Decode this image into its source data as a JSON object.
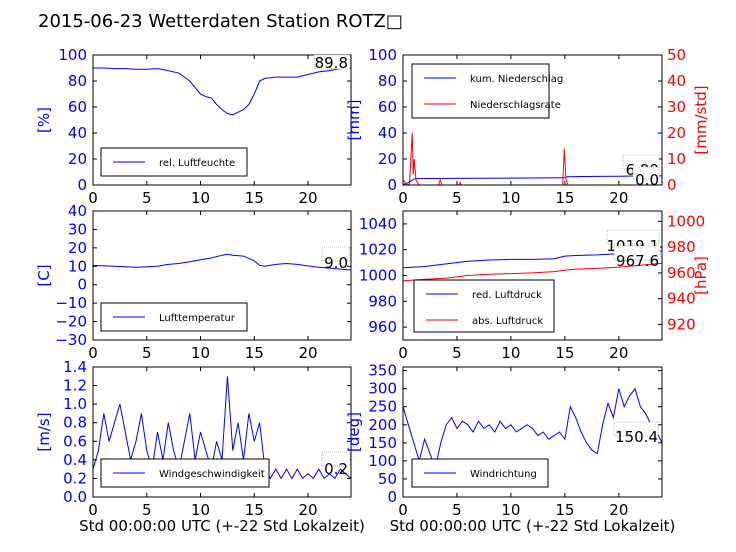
{
  "figure": {
    "title": "2015-06-23 Wetterdaten Station ROTZ□"
  },
  "colors": {
    "blue": "#0000ff",
    "red": "#ff0000",
    "light_blue": "#8080ff",
    "black": "#000000"
  },
  "chart_data": [
    {
      "id": "humidity",
      "type": "line",
      "xlim": [
        0,
        24
      ],
      "ylim": [
        0,
        100
      ],
      "xticks": [
        "0",
        "5",
        "10",
        "15",
        "20"
      ],
      "yticks": [
        "0",
        "20",
        "40",
        "60",
        "80",
        "100"
      ],
      "ylabel": "[%]",
      "xlabel": "",
      "legend": {
        "entries": [
          "rel. Luftfeuchte"
        ],
        "placement": "lower-left"
      },
      "annotations": [
        "89.8"
      ],
      "grid": false,
      "series": [
        {
          "name": "rel. Luftfeuchte",
          "color": "#0000ff",
          "x": [
            0,
            1,
            2,
            3,
            4,
            5,
            6,
            7,
            8,
            9,
            10,
            10.5,
            11,
            11.5,
            12,
            12.5,
            13,
            13.5,
            14,
            14.5,
            15,
            15.5,
            16,
            17,
            18,
            19,
            20,
            21,
            22,
            23,
            24
          ],
          "values": [
            90,
            90,
            89.5,
            89.5,
            89,
            89,
            89.5,
            88,
            86,
            80,
            70,
            68,
            67,
            62,
            58,
            55,
            54,
            56,
            58,
            62,
            70,
            80,
            82,
            83,
            83,
            83,
            85,
            87,
            88,
            89.5,
            90
          ]
        }
      ]
    },
    {
      "id": "precipitation",
      "type": "line",
      "xlim": [
        0,
        24
      ],
      "ylim": [
        0,
        100
      ],
      "y2lim": [
        0,
        50
      ],
      "xticks": [
        "0",
        "5",
        "10",
        "15",
        "20"
      ],
      "yticks": [
        "0",
        "20",
        "40",
        "60",
        "80",
        "100"
      ],
      "y2ticks": [
        "0",
        "10",
        "20",
        "30",
        "40",
        "50"
      ],
      "ylabel": "[mm]",
      "y2label": "[mm/std]",
      "xlabel": "",
      "legend": {
        "entries": [
          "kum. Niederschlag",
          "Niederschlagsrate"
        ],
        "placement": "top-left"
      },
      "annotations": [
        "6.99",
        "0.0"
      ],
      "grid": false,
      "series": [
        {
          "name": "kum. Niederschlag",
          "color": "#0000ff",
          "axis": "left",
          "x": [
            0,
            0.3,
            0.5,
            0.8,
            1.0,
            1.2,
            3,
            5,
            10,
            14.9,
            15.1,
            18,
            20,
            22,
            24
          ],
          "values": [
            0.5,
            1,
            2,
            3.5,
            4.5,
            5,
            5,
            5.1,
            5.3,
            5.5,
            6.4,
            6.6,
            6.8,
            6.95,
            7
          ]
        },
        {
          "name": "Niederschlagsrate",
          "color": "#ff0000",
          "axis": "right",
          "x": [
            0,
            0.2,
            0.4,
            0.6,
            0.75,
            0.85,
            0.95,
            1.05,
            1.2,
            1.5,
            3.3,
            3.45,
            3.6,
            5.2,
            5.3,
            5.4,
            14.8,
            14.95,
            15.1,
            15.3,
            24
          ],
          "values": [
            2,
            1,
            0,
            0.5,
            12,
            20,
            4,
            10,
            2,
            0,
            0,
            2,
            0,
            0,
            1,
            0,
            0,
            14,
            2,
            0,
            0
          ]
        }
      ]
    },
    {
      "id": "temperature",
      "type": "line",
      "xlim": [
        0,
        24
      ],
      "ylim": [
        -30,
        40
      ],
      "xticks": [
        "0",
        "5",
        "10",
        "15",
        "20"
      ],
      "yticks": [
        "−30",
        "−20",
        "−10",
        "0",
        "10",
        "20",
        "30",
        "40"
      ],
      "ylabel": "[C]",
      "xlabel": "",
      "legend": {
        "entries": [
          "Lufttemperatur"
        ],
        "placement": "lower-left"
      },
      "annotations": [
        "9.0"
      ],
      "grid": false,
      "series": [
        {
          "name": "Lufttemperatur",
          "color": "#0000ff",
          "x": [
            0,
            1,
            2,
            3,
            4,
            5,
            6,
            7,
            8,
            9,
            10,
            11,
            12,
            12.5,
            13,
            14,
            15,
            15.5,
            16,
            17,
            18,
            19,
            20,
            21,
            22,
            23,
            24
          ],
          "values": [
            10.5,
            10.2,
            10,
            9.8,
            9.5,
            9.8,
            10,
            11,
            11.5,
            12.5,
            13.5,
            14.5,
            16,
            16.5,
            16,
            15.5,
            13,
            10.5,
            10,
            11,
            11.5,
            11,
            10.2,
            9.5,
            9,
            8.5,
            8
          ]
        }
      ]
    },
    {
      "id": "pressure",
      "type": "line",
      "xlim": [
        0,
        24
      ],
      "ylim": [
        950,
        1050
      ],
      "y2lim": [
        908,
        1008
      ],
      "xticks": [
        "0",
        "5",
        "10",
        "15",
        "20"
      ],
      "yticks": [
        "960",
        "980",
        "1000",
        "1020",
        "1040"
      ],
      "y2ticks": [
        "920",
        "940",
        "960",
        "980",
        "1000"
      ],
      "ylabel": "",
      "y2label": "[hPa]",
      "xlabel": "",
      "legend": {
        "entries": [
          "red. Luftdruck",
          "abs. Luftdruck"
        ],
        "placement": "lower-left"
      },
      "annotations": [
        "1019.1",
        "967.6"
      ],
      "grid": false,
      "series": [
        {
          "name": "red. Luftdruck",
          "color": "#0000ff",
          "axis": "left",
          "x": [
            0,
            2,
            4,
            6,
            8,
            10,
            12,
            14,
            15,
            16,
            18,
            20,
            22,
            24
          ],
          "values": [
            1006,
            1007,
            1009,
            1011,
            1012,
            1012.5,
            1012.5,
            1013,
            1015,
            1015.5,
            1016,
            1017,
            1018.5,
            1019
          ]
        },
        {
          "name": "abs. Luftdruck",
          "color": "#ff0000",
          "axis": "right",
          "x": [
            0,
            2,
            4,
            6,
            8,
            10,
            12,
            14,
            15,
            16,
            18,
            20,
            22,
            24
          ],
          "values": [
            954,
            955,
            956,
            958,
            959,
            959.5,
            960,
            961,
            962,
            963,
            963.5,
            964.5,
            966,
            967.5
          ]
        }
      ]
    },
    {
      "id": "windspeed",
      "type": "line",
      "xlim": [
        0,
        24
      ],
      "ylim": [
        0,
        1.4
      ],
      "xticks": [
        "0",
        "5",
        "10",
        "15",
        "20"
      ],
      "yticks": [
        "0.0",
        "0.2",
        "0.4",
        "0.6",
        "0.8",
        "1.0",
        "1.2",
        "1.4"
      ],
      "ylabel": "[m/s]",
      "xlabel": "Std 00:00:00 UTC (+-22 Std Lokalzeit)",
      "legend": {
        "entries": [
          "Windgeschwindigkeit"
        ],
        "placement": "lower-left"
      },
      "annotations": [
        "0.2"
      ],
      "grid": false,
      "series": [
        {
          "name": "Windgeschwindigkeit",
          "color": "#0000ff",
          "x": [
            0,
            0.5,
            1,
            1.5,
            2,
            2.5,
            3,
            3.5,
            4,
            4.5,
            5,
            5.5,
            6,
            6.5,
            7,
            7.5,
            8,
            8.5,
            9,
            9.5,
            10,
            10.5,
            11,
            11.5,
            12,
            12.5,
            13,
            13.5,
            14,
            14.5,
            15,
            15.5,
            16,
            16.5,
            17,
            17.5,
            18,
            18.5,
            19,
            19.5,
            20,
            20.5,
            21,
            21.5,
            22,
            22.5,
            23,
            23.5,
            24
          ],
          "values": [
            0.3,
            0.5,
            0.9,
            0.6,
            0.8,
            1.0,
            0.7,
            0.4,
            0.6,
            0.9,
            0.5,
            0.3,
            0.7,
            0.4,
            0.8,
            0.5,
            0.3,
            0.6,
            0.9,
            0.4,
            0.7,
            0.5,
            0.3,
            0.6,
            0.4,
            1.3,
            0.5,
            0.8,
            0.4,
            0.9,
            0.6,
            0.8,
            0.3,
            0.2,
            0.3,
            0.2,
            0.3,
            0.2,
            0.3,
            0.2,
            0.25,
            0.2,
            0.3,
            0.2,
            0.25,
            0.2,
            0.3,
            0.25,
            0.2
          ]
        }
      ]
    },
    {
      "id": "winddirection",
      "type": "line",
      "xlim": [
        0,
        24
      ],
      "ylim": [
        0,
        360
      ],
      "xticks": [
        "0",
        "5",
        "10",
        "15",
        "20"
      ],
      "yticks": [
        "0",
        "50",
        "100",
        "150",
        "200",
        "250",
        "300",
        "350"
      ],
      "ylabel": "[deg]",
      "xlabel": "Std 00:00:00 UTC (+-22 Std Lokalzeit)",
      "legend": {
        "entries": [
          "Windrichtung"
        ],
        "placement": "lower-left"
      },
      "annotations": [
        "150.4"
      ],
      "grid": false,
      "series": [
        {
          "name": "Windrichtung",
          "color": "#0000ff",
          "x": [
            0,
            0.5,
            1,
            1.5,
            2,
            2.5,
            3,
            3.5,
            4,
            4.5,
            5,
            5.5,
            6,
            6.5,
            7,
            7.5,
            8,
            8.5,
            9,
            9.5,
            10,
            10.5,
            11,
            11.5,
            12,
            12.5,
            13,
            13.5,
            14,
            14.5,
            15,
            15.5,
            16,
            16.5,
            17,
            17.5,
            18,
            18.5,
            19,
            19.5,
            20,
            20.5,
            21,
            21.5,
            22,
            22.5,
            23,
            23.5,
            24
          ],
          "values": [
            250,
            200,
            150,
            100,
            160,
            120,
            80,
            150,
            200,
            220,
            190,
            210,
            200,
            180,
            210,
            190,
            200,
            180,
            210,
            190,
            200,
            180,
            190,
            200,
            190,
            170,
            180,
            160,
            170,
            180,
            160,
            250,
            220,
            180,
            150,
            130,
            120,
            200,
            260,
            220,
            300,
            250,
            280,
            300,
            250,
            230,
            200,
            180,
            150
          ]
        }
      ]
    }
  ]
}
